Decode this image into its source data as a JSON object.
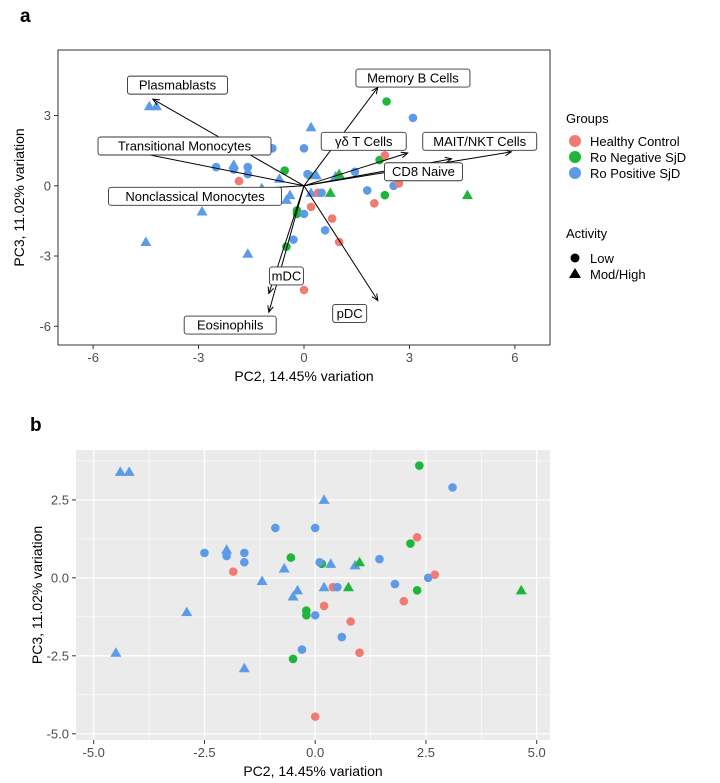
{
  "colors": {
    "healthy": "#F07B72",
    "negative": "#1DB53A",
    "positive": "#5B9BE8",
    "panel_bg": "#EBEBEB",
    "grid": "#FFFFFF"
  },
  "legend": {
    "groups_title": "Groups",
    "groups": [
      {
        "key": "healthy",
        "label": "Healthy Control"
      },
      {
        "key": "negative",
        "label": "Ro Negative SjD"
      },
      {
        "key": "positive",
        "label": "Ro Positive SjD"
      }
    ],
    "activity_title": "Activity",
    "activity": [
      {
        "shape": "circle",
        "label": "Low"
      },
      {
        "shape": "triangle",
        "label": "Mod/High"
      }
    ]
  },
  "chart_data": [
    {
      "panel": "a",
      "type": "scatter",
      "xlabel": "PC2, 14.45% variation",
      "ylabel": "PC3, 11.02% variation",
      "xlim": [
        -7.0,
        7.0
      ],
      "ylim": [
        -6.8,
        5.8
      ],
      "xticks": [
        -6,
        -3,
        0,
        3,
        6
      ],
      "xtick_labels": [
        "-6",
        "-3",
        "0",
        "3",
        "6"
      ],
      "yticks": [
        -6,
        -3,
        0,
        3
      ],
      "ytick_labels": [
        "-6",
        "-3",
        "0",
        "3"
      ],
      "grid": false,
      "points": [
        {
          "x": -4.4,
          "y": 3.4,
          "g": "positive",
          "s": "triangle"
        },
        {
          "x": -4.2,
          "y": 3.4,
          "g": "positive",
          "s": "triangle"
        },
        {
          "x": -2.9,
          "y": -1.1,
          "g": "positive",
          "s": "triangle"
        },
        {
          "x": -4.5,
          "y": -2.4,
          "g": "positive",
          "s": "triangle"
        },
        {
          "x": -1.6,
          "y": -2.9,
          "g": "positive",
          "s": "triangle"
        },
        {
          "x": -2.5,
          "y": 0.8,
          "g": "positive",
          "s": "circle"
        },
        {
          "x": -2.0,
          "y": 0.7,
          "g": "positive",
          "s": "circle"
        },
        {
          "x": -1.6,
          "y": 0.8,
          "g": "positive",
          "s": "circle"
        },
        {
          "x": -1.6,
          "y": 0.5,
          "g": "positive",
          "s": "circle"
        },
        {
          "x": -1.85,
          "y": 0.2,
          "g": "healthy",
          "s": "circle"
        },
        {
          "x": -0.9,
          "y": 1.6,
          "g": "positive",
          "s": "circle"
        },
        {
          "x": -2.0,
          "y": 0.9,
          "g": "positive",
          "s": "triangle"
        },
        {
          "x": -1.2,
          "y": -0.1,
          "g": "positive",
          "s": "triangle"
        },
        {
          "x": -0.7,
          "y": 0.3,
          "g": "positive",
          "s": "triangle"
        },
        {
          "x": -0.4,
          "y": -0.4,
          "g": "positive",
          "s": "triangle"
        },
        {
          "x": -0.5,
          "y": -0.6,
          "g": "positive",
          "s": "triangle"
        },
        {
          "x": -0.55,
          "y": 0.65,
          "g": "negative",
          "s": "circle"
        },
        {
          "x": -0.2,
          "y": -1.05,
          "g": "negative",
          "s": "circle"
        },
        {
          "x": -0.2,
          "y": -1.2,
          "g": "negative",
          "s": "circle"
        },
        {
          "x": -0.5,
          "y": -2.6,
          "g": "negative",
          "s": "circle"
        },
        {
          "x": -0.3,
          "y": -2.3,
          "g": "positive",
          "s": "circle"
        },
        {
          "x": 0.0,
          "y": 1.6,
          "g": "positive",
          "s": "circle"
        },
        {
          "x": 0.2,
          "y": 2.5,
          "g": "positive",
          "s": "triangle"
        },
        {
          "x": 0.15,
          "y": 0.45,
          "g": "negative",
          "s": "circle"
        },
        {
          "x": 0.1,
          "y": 0.5,
          "g": "positive",
          "s": "circle"
        },
        {
          "x": 0.0,
          "y": -1.2,
          "g": "positive",
          "s": "circle"
        },
        {
          "x": 0.2,
          "y": -0.9,
          "g": "healthy",
          "s": "circle"
        },
        {
          "x": 0.2,
          "y": -0.3,
          "g": "positive",
          "s": "triangle"
        },
        {
          "x": 0.35,
          "y": 0.45,
          "g": "positive",
          "s": "triangle"
        },
        {
          "x": 0.4,
          "y": -0.3,
          "g": "healthy",
          "s": "circle"
        },
        {
          "x": 0.5,
          "y": -0.3,
          "g": "positive",
          "s": "circle"
        },
        {
          "x": 0.6,
          "y": -1.9,
          "g": "positive",
          "s": "circle"
        },
        {
          "x": 0.8,
          "y": -1.4,
          "g": "healthy",
          "s": "circle"
        },
        {
          "x": 0.75,
          "y": -0.3,
          "g": "negative",
          "s": "triangle"
        },
        {
          "x": 0.9,
          "y": 0.4,
          "g": "positive",
          "s": "triangle"
        },
        {
          "x": 1.0,
          "y": 0.5,
          "g": "negative",
          "s": "triangle"
        },
        {
          "x": 1.0,
          "y": -2.4,
          "g": "healthy",
          "s": "circle"
        },
        {
          "x": 1.45,
          "y": 0.6,
          "g": "positive",
          "s": "circle"
        },
        {
          "x": 1.8,
          "y": -0.2,
          "g": "positive",
          "s": "circle"
        },
        {
          "x": 2.0,
          "y": -0.75,
          "g": "healthy",
          "s": "circle"
        },
        {
          "x": 2.15,
          "y": 1.1,
          "g": "negative",
          "s": "circle"
        },
        {
          "x": 2.3,
          "y": 1.3,
          "g": "healthy",
          "s": "circle"
        },
        {
          "x": 2.35,
          "y": 3.6,
          "g": "negative",
          "s": "circle"
        },
        {
          "x": 2.3,
          "y": -0.4,
          "g": "negative",
          "s": "circle"
        },
        {
          "x": 2.55,
          "y": 0.0,
          "g": "positive",
          "s": "circle"
        },
        {
          "x": 2.7,
          "y": 0.1,
          "g": "healthy",
          "s": "circle"
        },
        {
          "x": 3.1,
          "y": 2.9,
          "g": "positive",
          "s": "circle"
        },
        {
          "x": 4.65,
          "y": -0.4,
          "g": "negative",
          "s": "triangle"
        },
        {
          "x": 0.0,
          "y": -4.45,
          "g": "healthy",
          "s": "circle"
        }
      ],
      "loadings": [
        {
          "label": "Plasmablasts",
          "x": -4.3,
          "y": 3.7,
          "lx": -3.6,
          "ly": 4.3
        },
        {
          "label": "Transitional Monocytes",
          "x": -5.5,
          "y": 1.65,
          "lx": -3.4,
          "ly": 1.7
        },
        {
          "label": "Nonclassical Monocytes",
          "x": -5.1,
          "y": -0.45,
          "lx": -3.1,
          "ly": -0.45
        },
        {
          "label": "mDC",
          "x": -1.0,
          "y": -4.6,
          "lx": -0.5,
          "ly": -3.85
        },
        {
          "label": "Eosinophils",
          "x": -1.0,
          "y": -5.4,
          "lx": -2.1,
          "ly": -5.95
        },
        {
          "label": "pDC",
          "x": 2.1,
          "y": -4.9,
          "lx": 1.3,
          "ly": -5.45
        },
        {
          "label": "Memory B Cells",
          "x": 2.1,
          "y": 4.2,
          "lx": 3.1,
          "ly": 4.6
        },
        {
          "label": "γδ T Cells",
          "x": 2.95,
          "y": 1.4,
          "lx": 1.7,
          "ly": 1.9
        },
        {
          "label": "MAIT/NKT Cells",
          "x": 5.9,
          "y": 1.45,
          "lx": 5.0,
          "ly": 1.9
        },
        {
          "label": "CD8 Naive",
          "x": 4.2,
          "y": 1.15,
          "lx": 3.4,
          "ly": 0.6
        }
      ]
    },
    {
      "panel": "b",
      "type": "scatter",
      "xlabel": "PC2, 14.45% variation",
      "ylabel": "PC3, 11.02% variation",
      "xlim": [
        -5.4,
        5.3
      ],
      "ylim": [
        -5.2,
        4.1
      ],
      "xticks": [
        -5.0,
        -2.5,
        0.0,
        2.5,
        5.0
      ],
      "xtick_labels": [
        "-5.0",
        "-2.5",
        "0.0",
        "2.5",
        "5.0"
      ],
      "yticks": [
        -5.0,
        -2.5,
        0.0,
        2.5
      ],
      "ytick_labels": [
        "-5.0",
        "-2.5",
        "0.0",
        "2.5"
      ],
      "grid": true
    }
  ]
}
